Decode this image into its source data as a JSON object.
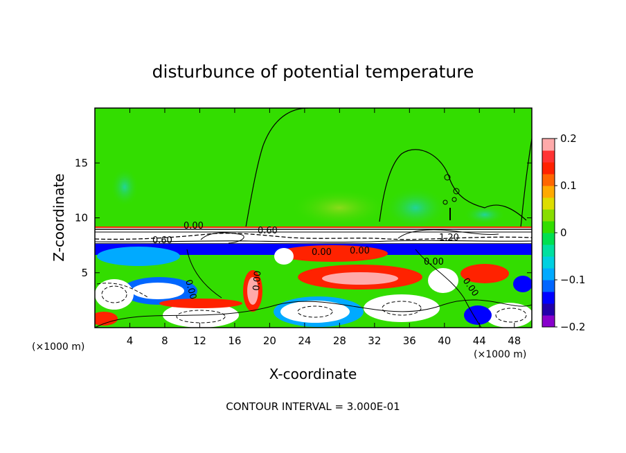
{
  "chart_data": {
    "type": "heatmap",
    "title": "disturbunce of potential temperature",
    "xlabel": "X-coordinate",
    "ylabel": "Z-coordinate",
    "x_unit": "(×1000 m)",
    "y_unit": "(×1000 m)",
    "xlim": [
      0,
      50
    ],
    "ylim": [
      0,
      20
    ],
    "xticks": [
      4,
      8,
      12,
      16,
      20,
      24,
      28,
      32,
      36,
      40,
      44,
      48
    ],
    "yticks": [
      5,
      10,
      15
    ],
    "colorbar": {
      "range": [
        -0.2,
        0.2
      ],
      "tick_values": [
        0.2,
        0.1,
        0,
        -0.1,
        -0.2
      ],
      "tick_labels": [
        "0.2",
        "0.1",
        "0",
        "−0.1",
        "−0.2"
      ],
      "colors": [
        "#8800cc",
        "#2200aa",
        "#0000ff",
        "#0066ff",
        "#00aaff",
        "#00d0e0",
        "#00e0a0",
        "#00e050",
        "#33dd00",
        "#88dd00",
        "#dddd00",
        "#ffaa00",
        "#ff6600",
        "#ff2200",
        "#ff3333",
        "#ffaaaa"
      ]
    },
    "contour_labels": [
      "0.00",
      "0.60",
      "0.60",
      "1.20",
      "0.00",
      "0.00",
      "0.00",
      "0.00",
      "0.00",
      "0.00"
    ],
    "contour_interval": "CONTOUR INTERVAL = 3.000E-01",
    "grid": false
  }
}
